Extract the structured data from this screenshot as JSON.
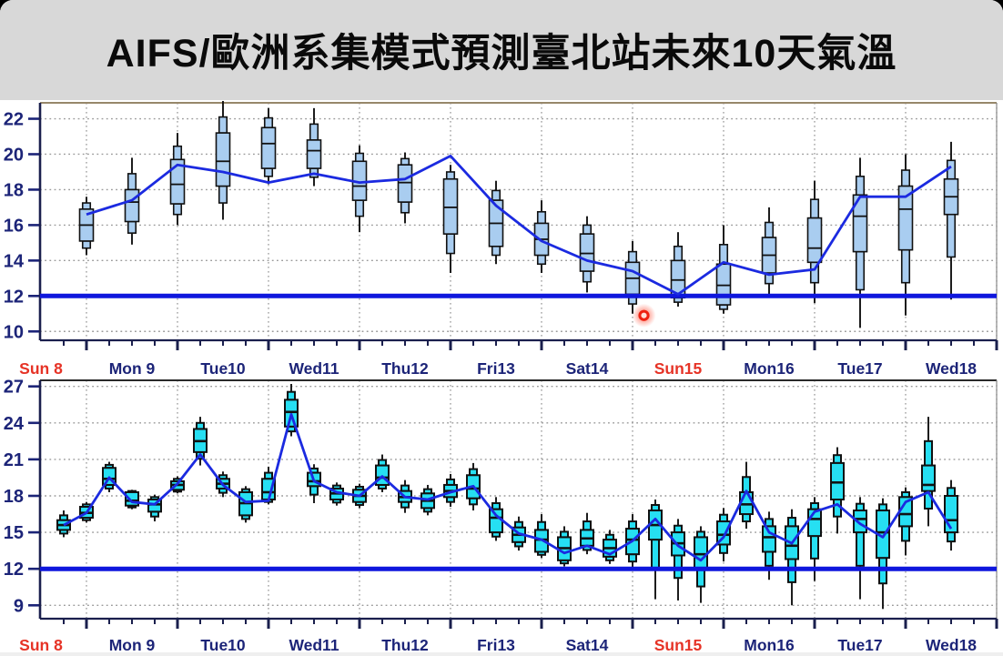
{
  "title": "AIFS/歐洲系集模式預測臺北站未來10天氣溫",
  "colors": {
    "title_bg": "#d8d8d8",
    "title_text": "#0a0a0a",
    "plot_bg": "#ffffff",
    "grid": "#9a9a9a",
    "axis": "#1a1f4d",
    "axis_label": "#1c2478",
    "sunday_label": "#e63326",
    "box_fill_upper": "#a9cdf0",
    "box_fill_lower": "#26dff2",
    "box_stroke": "#111111",
    "trend_line": "#1b2ae0",
    "threshold_line": "#0f17dd",
    "laser_dot": "#ee2211",
    "frame_top_upper": "#97876a"
  },
  "x_axis": {
    "day_labels": [
      {
        "label": "Sun 8",
        "red": true
      },
      {
        "label": "Mon 9",
        "red": false
      },
      {
        "label": "Tue10",
        "red": false
      },
      {
        "label": "Wed11",
        "red": false
      },
      {
        "label": "Thu12",
        "red": false
      },
      {
        "label": "Fri13",
        "red": false
      },
      {
        "label": "Sat14",
        "red": false
      },
      {
        "label": "Sun15",
        "red": true
      },
      {
        "label": "Mon16",
        "red": false
      },
      {
        "label": "Tue17",
        "red": false
      },
      {
        "label": "Wed18",
        "red": false
      }
    ]
  },
  "chart_data": [
    {
      "type": "boxplot",
      "panel": "upper",
      "description": "AIFS ensemble 10-day temperature forecast for Taipei station, 12-hourly boxes (deg C)",
      "ylim": [
        9.5,
        22.9
      ],
      "yticks": [
        10,
        12,
        14,
        16,
        18,
        20,
        22
      ],
      "threshold": 12,
      "start_hour": 24,
      "step_hours": 12,
      "grid": true,
      "boxes": [
        [
          14.3,
          15.1,
          16.0,
          16.9,
          17.6
        ],
        [
          14.9,
          16.2,
          17.3,
          18.0,
          19.8
        ],
        [
          16.0,
          17.2,
          18.3,
          19.7,
          21.2
        ],
        [
          16.3,
          18.2,
          19.6,
          21.2,
          23.0
        ],
        [
          18.3,
          19.2,
          20.6,
          21.5,
          22.6
        ],
        [
          18.2,
          19.2,
          20.2,
          20.8,
          22.6
        ],
        [
          15.6,
          17.4,
          18.2,
          19.6,
          20.5
        ],
        [
          16.1,
          17.3,
          18.4,
          19.4,
          20.1
        ],
        [
          13.3,
          15.5,
          17.0,
          18.6,
          19.4
        ],
        [
          13.8,
          14.8,
          16.1,
          17.4,
          18.5
        ],
        [
          13.3,
          14.3,
          15.2,
          16.1,
          17.4
        ],
        [
          12.2,
          13.4,
          14.4,
          15.5,
          16.5
        ],
        [
          11.0,
          12.1,
          13.0,
          13.9,
          15.1
        ],
        [
          11.4,
          11.9,
          12.9,
          14.0,
          15.6
        ],
        [
          11.0,
          11.5,
          12.6,
          13.8,
          16.0
        ],
        [
          12.1,
          13.3,
          14.3,
          15.3,
          17.0
        ],
        [
          11.6,
          13.9,
          14.7,
          16.4,
          18.5
        ],
        [
          10.2,
          14.5,
          16.5,
          17.7,
          19.8
        ],
        [
          10.9,
          14.6,
          16.9,
          18.2,
          20.0
        ],
        [
          11.8,
          16.6,
          17.6,
          18.6,
          20.7
        ]
      ],
      "line": [
        16.6,
        17.4,
        19.4,
        19.0,
        18.4,
        18.9,
        18.4,
        18.6,
        19.9,
        17.1,
        15.1,
        14.0,
        13.4,
        12.1,
        13.9,
        13.2,
        13.5,
        17.6,
        17.6,
        19.3
      ],
      "laser_dot": {
        "hour": 171,
        "value": 10.9
      }
    },
    {
      "type": "boxplot",
      "panel": "lower",
      "description": "ECMWF ensemble 10-day temperature forecast for Taipei station, 6-hourly boxes (deg C)",
      "ylim": [
        7.9,
        27.5
      ],
      "yticks": [
        9,
        12,
        15,
        18,
        21,
        24,
        27
      ],
      "threshold": 12,
      "start_hour": 18,
      "step_hours": 6,
      "grid": true,
      "boxes": [
        [
          14.6,
          15.2,
          15.6,
          16.0,
          16.8
        ],
        [
          15.8,
          16.2,
          16.6,
          17.1,
          17.5
        ],
        [
          18.3,
          18.9,
          19.4,
          20.3,
          20.8
        ],
        [
          16.9,
          17.2,
          17.6,
          18.3,
          18.5
        ],
        [
          15.9,
          16.7,
          17.3,
          17.7,
          18.1
        ],
        [
          18.2,
          18.5,
          18.9,
          19.2,
          19.6
        ],
        [
          20.5,
          21.6,
          22.5,
          23.5,
          24.5
        ],
        [
          17.9,
          18.6,
          19.0,
          19.4,
          20.0
        ],
        [
          15.8,
          16.4,
          17.4,
          18.3,
          18.8
        ],
        [
          17.3,
          17.7,
          18.3,
          19.4,
          20.4
        ],
        [
          22.9,
          23.7,
          24.9,
          25.9,
          27.2
        ],
        [
          17.4,
          18.8,
          19.2,
          19.9,
          20.6
        ],
        [
          17.2,
          17.7,
          18.2,
          18.6,
          19.1
        ],
        [
          17.0,
          17.5,
          18.0,
          18.5,
          19.0
        ],
        [
          18.3,
          18.9,
          19.5,
          20.5,
          21.4
        ],
        [
          16.6,
          17.5,
          17.9,
          18.4,
          19.3
        ],
        [
          16.4,
          17.0,
          17.6,
          18.2,
          18.9
        ],
        [
          17.1,
          17.9,
          18.4,
          18.9,
          19.8
        ],
        [
          16.8,
          17.8,
          18.6,
          19.7,
          20.7
        ],
        [
          14.3,
          15.0,
          16.2,
          16.9,
          17.9
        ],
        [
          13.5,
          14.2,
          14.8,
          15.4,
          16.3
        ],
        [
          12.9,
          13.4,
          14.4,
          15.2,
          16.5
        ],
        [
          12.2,
          12.7,
          13.7,
          14.6,
          15.5
        ],
        [
          13.2,
          13.9,
          14.5,
          15.2,
          16.6
        ],
        [
          12.4,
          13.0,
          13.7,
          14.4,
          15.2
        ],
        [
          12.0,
          13.2,
          14.4,
          15.3,
          16.5
        ],
        [
          9.5,
          14.4,
          15.6,
          16.8,
          17.7
        ],
        [
          9.4,
          13.1,
          14.1,
          15.0,
          16.1
        ],
        [
          9.2,
          11.9,
          13.2,
          14.6,
          15.5
        ],
        [
          12.6,
          14.0,
          14.8,
          15.9,
          17.0
        ],
        [
          15.3,
          16.5,
          17.3,
          18.3,
          20.8
        ],
        [
          11.1,
          13.4,
          14.6,
          15.5,
          16.7
        ],
        [
          9.0,
          12.8,
          13.9,
          15.5,
          16.9
        ],
        [
          11.0,
          14.7,
          16.1,
          16.9,
          17.9
        ],
        [
          14.9,
          17.7,
          19.1,
          20.7,
          22.0
        ],
        [
          9.5,
          15.0,
          16.1,
          16.8,
          17.9
        ],
        [
          8.7,
          12.9,
          15.0,
          16.8,
          17.8
        ],
        [
          13.1,
          15.5,
          16.5,
          17.9,
          18.7
        ],
        [
          15.5,
          18.4,
          18.9,
          20.5,
          24.5
        ],
        [
          13.5,
          15.0,
          16.0,
          18.0,
          19.3
        ]
      ],
      "line": [
        15.6,
        16.6,
        19.5,
        17.5,
        17.3,
        19.0,
        21.4,
        18.9,
        17.5,
        17.6,
        24.7,
        19.2,
        18.3,
        18.0,
        19.6,
        17.9,
        17.7,
        18.3,
        18.8,
        16.4,
        14.9,
        14.4,
        13.3,
        13.9,
        13.2,
        14.3,
        16.1,
        13.9,
        12.7,
        14.6,
        18.4,
        15.0,
        14.1,
        16.7,
        17.3,
        15.7,
        14.6,
        17.5,
        18.3,
        15.3
      ]
    }
  ]
}
